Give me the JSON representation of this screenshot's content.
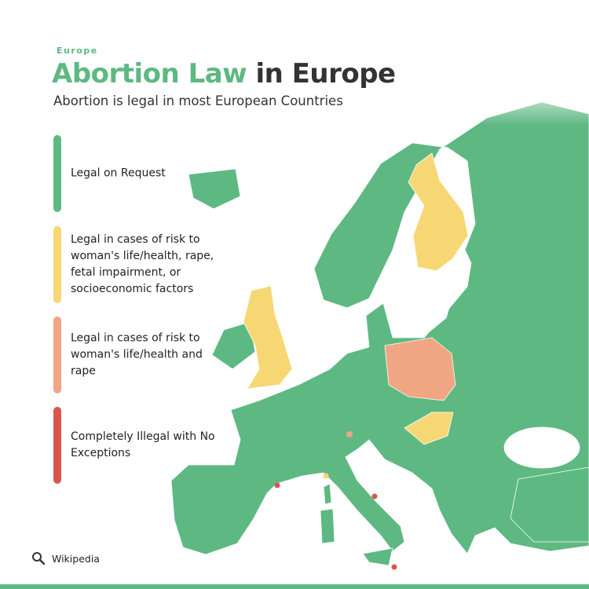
{
  "header": {
    "eyebrow": "Europe",
    "title_highlight": "Abortion Law",
    "title_rest": "in Europe",
    "subtitle": "Abortion is legal in most European Countries"
  },
  "legend": {
    "items": [
      {
        "label": "Legal on Request",
        "color": "#5eb882"
      },
      {
        "label": "Legal in cases of risk to woman's life/health, rape, fetal impairment, or socioeconomic factors",
        "color": "#f7d774"
      },
      {
        "label": "Legal in cases of risk to woman's life/health and rape",
        "color": "#f0a583"
      },
      {
        "label": "Completely Illegal with No Exceptions",
        "color": "#d9574a"
      }
    ]
  },
  "source": "Wikipedia"
}
